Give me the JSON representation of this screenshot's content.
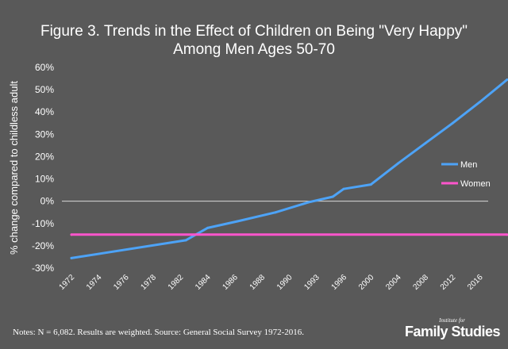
{
  "chart_data": {
    "type": "line",
    "title_line1": "Figure 3. Trends in the Effect of Children on Being \"Very Happy\"",
    "title_line2": "Among Men Ages 50-70",
    "ylabel": "% change compared to childless adult",
    "xlabel": "",
    "ylim": [
      -30,
      60
    ],
    "yticks": [
      -30,
      -20,
      -10,
      0,
      10,
      20,
      30,
      40,
      50,
      60
    ],
    "ytick_labels": [
      "-30%",
      "-20%",
      "-10%",
      "0%",
      "10%",
      "20%",
      "30%",
      "40%",
      "50%",
      "60%"
    ],
    "categories": [
      "1972",
      "1974",
      "1976",
      "1978",
      "1982",
      "1984",
      "1986",
      "1988",
      "1990",
      "1993",
      "1996",
      "2000",
      "2004",
      "2008",
      "2012",
      "2016"
    ],
    "series": [
      {
        "name": "Men",
        "color": "#4da3f7",
        "x": [
          0,
          4.2,
          5,
          6.1,
          7.5,
          8.7,
          9.6,
          10,
          11,
          12,
          13,
          14,
          15,
          16
        ],
        "values": [
          -25.5,
          -17.5,
          -12,
          -9,
          -5,
          -0.5,
          2,
          5.5,
          7.5,
          17,
          26,
          35,
          44.5,
          54.5
        ]
      },
      {
        "name": "Women",
        "color": "#ff55cc",
        "x": [
          0,
          16
        ],
        "values": [
          -15,
          -15
        ]
      }
    ],
    "legend_position": "right",
    "grid": false
  },
  "footer": {
    "notes": "Notes: N = 6,082. Results are weighted. Source: General Social Survey 1972-2016.",
    "logo_small": "Institute for",
    "logo_big": "Family Studies"
  },
  "colors": {
    "background": "#595959",
    "axis": "#ffffff"
  }
}
